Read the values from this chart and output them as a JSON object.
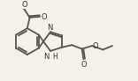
{
  "bg_color": "#f5f0e8",
  "line_color": "#555555",
  "line_width": 1.3,
  "text_color": "#333333",
  "font_size": 6.0,
  "font_size_h": 5.5
}
